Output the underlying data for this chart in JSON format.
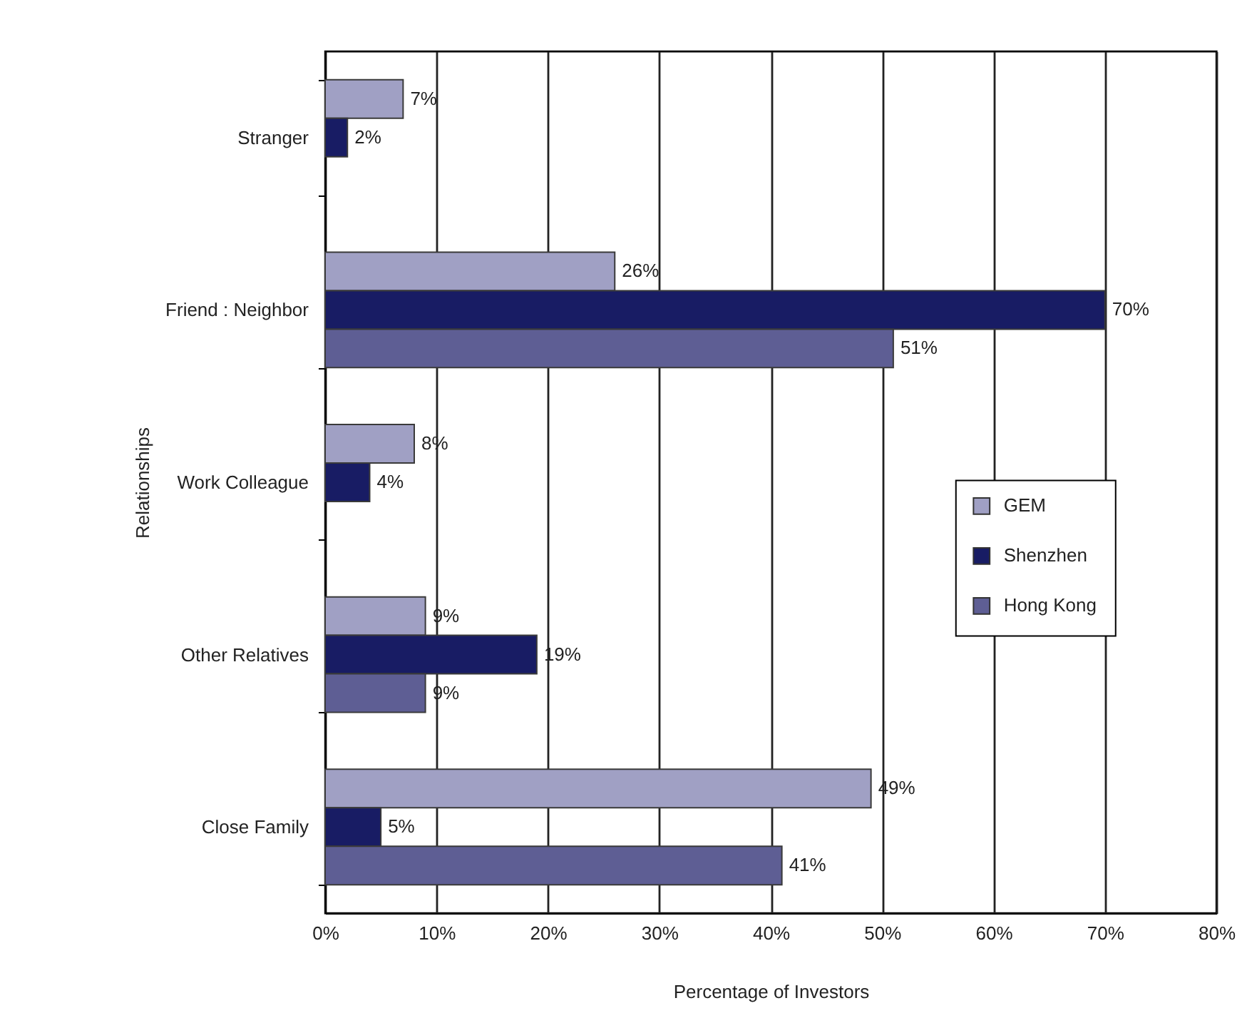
{
  "chart_data": {
    "type": "bar",
    "orientation": "horizontal",
    "categories": [
      "Stranger",
      "Friend : Neighbor",
      "Work Colleague",
      "Other Relatives",
      "Close Family"
    ],
    "series": [
      {
        "name": "GEM",
        "color": "#a0a0c4",
        "values": [
          7,
          26,
          8,
          9,
          49
        ],
        "value_labels": [
          "7%",
          "26%",
          "8%",
          "9%",
          "49%"
        ]
      },
      {
        "name": "Shenzhen",
        "color": "#181c64",
        "values": [
          2,
          70,
          4,
          19,
          5
        ],
        "value_labels": [
          "2%",
          "70%",
          "4%",
          "19%",
          "5%"
        ]
      },
      {
        "name": "Hong Kong",
        "color": "#5e5e94",
        "values": [
          null,
          51,
          null,
          9,
          41
        ],
        "value_labels": [
          null,
          "51%",
          null,
          "9%",
          "41%"
        ]
      }
    ],
    "xlabel": "Percentage of Investors",
    "ylabel": "Relationships",
    "xlim": [
      0,
      80
    ],
    "xticks": [
      {
        "value": 0,
        "label": "0%"
      },
      {
        "value": 10,
        "label": "10%"
      },
      {
        "value": 20,
        "label": "20%"
      },
      {
        "value": 30,
        "label": "30%"
      },
      {
        "value": 40,
        "label": "40%"
      },
      {
        "value": 50,
        "label": "50%"
      },
      {
        "value": 60,
        "label": "60%"
      },
      {
        "value": 70,
        "label": "70%"
      },
      {
        "value": 80,
        "label": "80%"
      }
    ],
    "grid": "x",
    "legend": "right"
  }
}
